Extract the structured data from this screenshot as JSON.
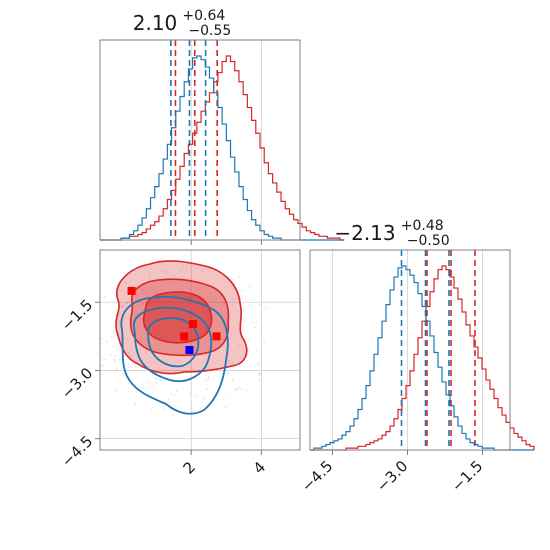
{
  "colors": {
    "red": "#d62728",
    "blue": "#1f77b4",
    "marker_red": "#ff0000",
    "marker_blue": "#0000ff"
  },
  "chart_data": [
    {
      "type": "histogram",
      "panel": "param1-marginal",
      "title": {
        "value": "2.10",
        "plus": "+0.64",
        "minus": "−0.55"
      },
      "xlim": [
        -0.6,
        5.1
      ],
      "x_gridlines": [
        2,
        4
      ],
      "series": [
        {
          "color": "red",
          "step": 0.12,
          "start": -0.6,
          "counts": [
            0,
            0,
            0,
            0,
            0,
            1,
            1,
            2,
            2,
            3,
            4,
            6,
            8,
            10,
            13,
            17,
            22,
            27,
            33,
            40,
            47,
            52,
            58,
            64,
            70,
            75,
            80,
            86,
            91,
            97,
            100,
            97,
            92,
            86,
            79,
            72,
            65,
            58,
            50,
            42,
            36,
            31,
            26,
            21,
            17,
            14,
            11,
            9,
            7,
            5,
            4,
            3,
            2,
            2,
            1,
            1,
            1,
            0
          ],
          "quantiles": [
            1.55,
            2.1,
            2.74
          ]
        },
        {
          "color": "blue",
          "step": 0.12,
          "start": -0.6,
          "counts": [
            0,
            0,
            0,
            0,
            0,
            1,
            1,
            3,
            5,
            8,
            12,
            17,
            23,
            29,
            36,
            44,
            52,
            61,
            70,
            78,
            86,
            93,
            99,
            100,
            98,
            94,
            88,
            80,
            72,
            63,
            54,
            45,
            37,
            29,
            22,
            16,
            11,
            8,
            5,
            3,
            2,
            1,
            1,
            0,
            0,
            0,
            0,
            0,
            0,
            0,
            0,
            0,
            0,
            0,
            0,
            0,
            0,
            0
          ],
          "quantiles": [
            1.42,
            1.95,
            2.41
          ]
        }
      ]
    },
    {
      "type": "histogram",
      "panel": "param2-marginal",
      "title": {
        "value": "−2.13",
        "plus": "+0.48",
        "minus": "−0.50"
      },
      "xlim": [
        -4.95,
        -0.95
      ],
      "x_ticks": [
        "−4.5",
        "−3.0",
        "−1.5"
      ],
      "x_tick_values": [
        -4.5,
        -3.0,
        -1.5
      ],
      "series": [
        {
          "color": "red",
          "step": 0.08,
          "start": -4.95,
          "counts": [
            0,
            0,
            0,
            0,
            0,
            0,
            0,
            0,
            0,
            1,
            1,
            1,
            2,
            2,
            3,
            4,
            5,
            6,
            8,
            10,
            13,
            17,
            22,
            28,
            35,
            43,
            52,
            61,
            70,
            78,
            86,
            93,
            98,
            100,
            98,
            94,
            88,
            82,
            75,
            68,
            62,
            56,
            50,
            44,
            38,
            33,
            28,
            23,
            19,
            15,
            12,
            9,
            7,
            5,
            3,
            2
          ],
          "quantiles": [
            -2.61,
            -2.13,
            -1.65
          ]
        },
        {
          "color": "blue",
          "step": 0.08,
          "start": -4.95,
          "counts": [
            0,
            1,
            1,
            2,
            3,
            4,
            5,
            6,
            8,
            10,
            13,
            17,
            22,
            28,
            35,
            43,
            52,
            61,
            70,
            79,
            87,
            94,
            99,
            100,
            98,
            95,
            91,
            85,
            78,
            70,
            62,
            53,
            45,
            37,
            30,
            24,
            18,
            13,
            9,
            6,
            4,
            3,
            2,
            1,
            1,
            1,
            0,
            0,
            0,
            0,
            0,
            0,
            0,
            0,
            0,
            0
          ],
          "quantiles": [
            -3.12,
            -2.64,
            -2.17
          ]
        }
      ]
    },
    {
      "type": "contour",
      "panel": "joint",
      "xlim": [
        -0.6,
        5.1
      ],
      "ylim": [
        -4.75,
        -0.35
      ],
      "x_ticks": [
        "2",
        "4"
      ],
      "x_tick_values": [
        2,
        4
      ],
      "y_ticks": [
        "−1.5",
        "−3.0",
        "−4.5"
      ],
      "y_tick_values": [
        -1.5,
        -3.0,
        -4.5
      ],
      "markers": [
        {
          "color": "marker_red",
          "x": 0.3,
          "y": -1.25
        },
        {
          "color": "marker_red",
          "x": 2.05,
          "y": -1.98
        },
        {
          "color": "marker_red",
          "x": 1.8,
          "y": -2.25
        },
        {
          "color": "marker_red",
          "x": 2.72,
          "y": -2.25
        },
        {
          "color": "marker_blue",
          "x": 1.95,
          "y": -2.55
        }
      ]
    }
  ]
}
